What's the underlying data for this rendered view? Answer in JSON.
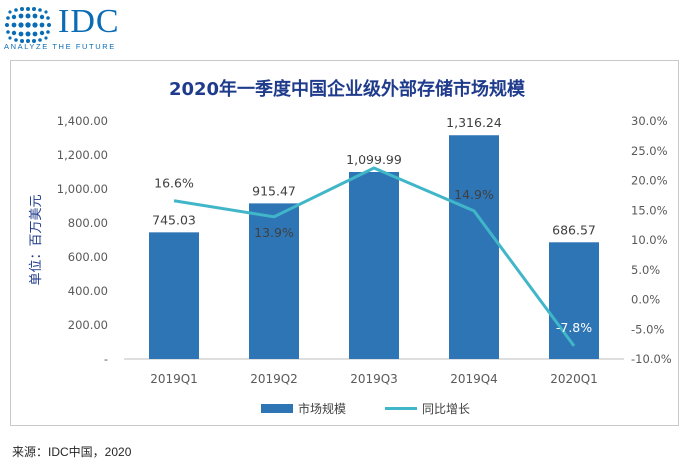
{
  "logo": {
    "text": "IDC",
    "tagline": "ANALYZE THE FUTURE",
    "color": "#0a6cb4"
  },
  "source": "来源：IDC中国，2020",
  "chart_data": {
    "type": "bar",
    "title": "2020年一季度中国企业级外部存储市场规模",
    "categories": [
      "2019Q1",
      "2019Q2",
      "2019Q3",
      "2019Q4",
      "2020Q1"
    ],
    "series": [
      {
        "name": "市场规模",
        "type": "bar",
        "axis": "left",
        "values": [
          745.03,
          915.47,
          1099.99,
          1316.24,
          686.57
        ],
        "labels": [
          "745.03",
          "915.47",
          "1,099.99",
          "1,316.24",
          "686.57"
        ],
        "color": "#2e75b6"
      },
      {
        "name": "同比增长",
        "type": "line",
        "axis": "right",
        "values": [
          16.6,
          13.9,
          22.1,
          14.9,
          -7.8
        ],
        "labels": [
          "16.6%",
          "13.9%",
          "22.1%",
          "14.9%",
          "-7.8%"
        ],
        "color": "#41b6c8"
      }
    ],
    "ylabel": "单位：百万美元",
    "ylim": [
      0,
      1400
    ],
    "yticks": [
      "-",
      "200.00",
      "400.00",
      "600.00",
      "800.00",
      "1,000.00",
      "1,200.00",
      "1,400.00"
    ],
    "y2lim": [
      -10,
      30
    ],
    "y2ticks": [
      "-10.0%",
      "-5.0%",
      "0.0%",
      "5.0%",
      "10.0%",
      "15.0%",
      "20.0%",
      "25.0%",
      "30.0%"
    ],
    "legend_position": "bottom",
    "grid": false
  }
}
